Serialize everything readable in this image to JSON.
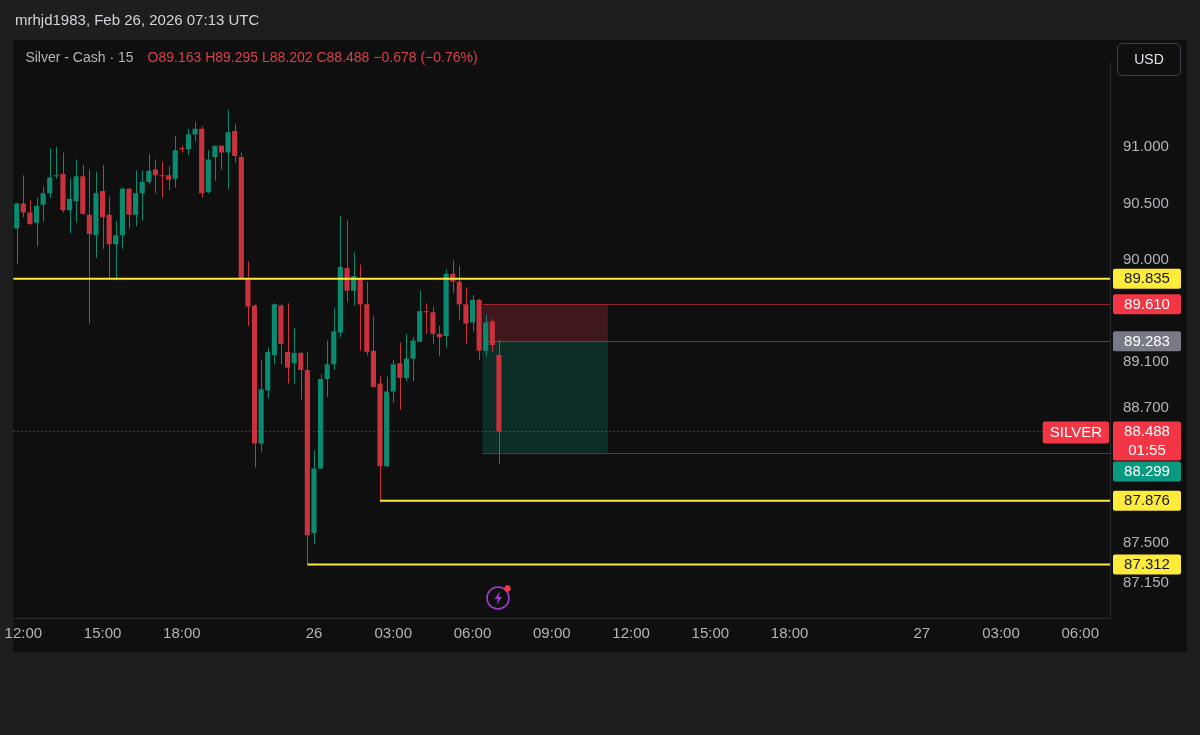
{
  "chart_data": {
    "type": "candlestick",
    "title": "Silver - Cash · 15",
    "subtitle": "O89.163 H89.295 L88.202 C88.488 −0.678 (−0.76%)",
    "categories": [
      null,
      "12:00",
      null,
      null,
      null,
      null,
      null,
      null,
      null,
      null,
      null,
      null,
      null,
      "15:00",
      null,
      null,
      null,
      null,
      null,
      null,
      null,
      null,
      null,
      null,
      null,
      "18:00",
      null,
      null,
      null,
      null,
      null,
      null,
      null,
      null,
      null,
      null,
      null,
      null,
      null,
      null,
      null,
      null,
      null,
      null,
      null,
      "26",
      null,
      null,
      null,
      null,
      null,
      null,
      null,
      null,
      null,
      null,
      null,
      "03:00",
      null,
      null,
      null,
      null,
      null,
      null,
      null,
      null,
      null,
      null,
      null,
      "06:00",
      null,
      null,
      null,
      null,
      null,
      null,
      null,
      null,
      null,
      null,
      null,
      "09:00",
      null,
      null,
      null,
      null,
      null,
      null,
      null,
      null,
      null,
      null,
      null,
      "12:00",
      null,
      null,
      null,
      null,
      null,
      null,
      null,
      null,
      null,
      null,
      null,
      "15:00",
      null,
      null,
      null,
      null,
      null,
      null,
      null,
      null,
      null,
      null,
      null,
      "18:00",
      null,
      null,
      null,
      null,
      null,
      null,
      null,
      null,
      null,
      null,
      null,
      null,
      null,
      null,
      null,
      null,
      null,
      null,
      null,
      "27",
      null,
      null,
      null,
      null,
      null,
      null,
      null,
      null,
      null,
      null,
      null,
      "03:00",
      null,
      null,
      null,
      null,
      null,
      null,
      null,
      null,
      null,
      null,
      null,
      "06:00",
      null,
      null,
      null,
      null
    ],
    "ohlc": [
      [
        90.28,
        90.51,
        89.97,
        90.5
      ],
      [
        90.5,
        90.75,
        90.38,
        90.42
      ],
      [
        90.42,
        90.53,
        90.31,
        90.32
      ],
      [
        90.33,
        90.55,
        90.12,
        90.48
      ],
      [
        90.49,
        90.65,
        90.34,
        90.59
      ],
      [
        90.59,
        90.99,
        90.55,
        90.73
      ],
      [
        90.74,
        91.0,
        90.72,
        90.75
      ],
      [
        90.76,
        90.95,
        90.42,
        90.44
      ],
      [
        90.44,
        90.72,
        90.24,
        90.54
      ],
      [
        90.52,
        90.89,
        90.33,
        90.74
      ],
      [
        90.74,
        90.84,
        90.4,
        90.41
      ],
      [
        90.4,
        90.8,
        89.44,
        90.23
      ],
      [
        90.22,
        90.78,
        90.02,
        90.59
      ],
      [
        90.61,
        90.84,
        90.1,
        90.38
      ],
      [
        90.4,
        90.56,
        89.84,
        90.14
      ],
      [
        90.14,
        90.35,
        89.83,
        90.22
      ],
      [
        90.22,
        90.64,
        90.1,
        90.63
      ],
      [
        90.63,
        90.64,
        90.28,
        90.4
      ],
      [
        90.4,
        90.79,
        90.3,
        90.59
      ],
      [
        90.59,
        90.79,
        90.35,
        90.69
      ],
      [
        90.69,
        90.94,
        90.67,
        90.79
      ],
      [
        90.8,
        90.89,
        90.59,
        90.75
      ],
      [
        90.75,
        90.87,
        90.55,
        90.74
      ],
      [
        90.75,
        90.83,
        90.62,
        90.71
      ],
      [
        90.72,
        91.1,
        90.64,
        90.97
      ],
      [
        90.99,
        91.01,
        90.95,
        90.98
      ],
      [
        90.98,
        91.16,
        90.93,
        91.11
      ],
      [
        91.11,
        91.22,
        91.05,
        91.16
      ],
      [
        91.16,
        91.18,
        90.55,
        90.59
      ],
      [
        90.6,
        90.97,
        90.59,
        90.89
      ],
      [
        90.91,
        91.01,
        90.7,
        91.01
      ],
      [
        91.01,
        91.01,
        90.8,
        90.95
      ],
      [
        90.95,
        91.33,
        90.63,
        91.13
      ],
      [
        91.14,
        91.2,
        90.86,
        90.92
      ],
      [
        90.91,
        90.95,
        89.83,
        89.84
      ],
      [
        89.84,
        89.99,
        89.42,
        89.59
      ],
      [
        89.6,
        89.61,
        88.17,
        88.38
      ],
      [
        88.38,
        89.12,
        88.31,
        88.86
      ],
      [
        88.85,
        89.23,
        88.78,
        89.19
      ],
      [
        89.16,
        89.62,
        89.08,
        89.61
      ],
      [
        89.6,
        89.61,
        89.08,
        89.26
      ],
      [
        89.19,
        89.62,
        88.91,
        89.05
      ],
      [
        89.09,
        89.4,
        88.91,
        89.18
      ],
      [
        89.18,
        89.19,
        88.77,
        89.03
      ],
      [
        89.03,
        89.19,
        87.312,
        87.57
      ],
      [
        87.59,
        88.32,
        87.49,
        88.16
      ],
      [
        88.16,
        88.99,
        88.16,
        88.95
      ],
      [
        88.95,
        89.29,
        88.79,
        89.08
      ],
      [
        89.08,
        89.58,
        89.03,
        89.37
      ],
      [
        89.36,
        90.39,
        89.32,
        89.94
      ],
      [
        89.93,
        90.35,
        89.63,
        89.73
      ],
      [
        89.73,
        90.07,
        89.6,
        89.86
      ],
      [
        89.84,
        89.96,
        89.2,
        89.61
      ],
      [
        89.61,
        89.81,
        89.16,
        89.19
      ],
      [
        89.2,
        89.5,
        88.88,
        88.88
      ],
      [
        88.91,
        88.98,
        87.876,
        88.18
      ],
      [
        88.18,
        88.97,
        88.17,
        88.84
      ],
      [
        88.84,
        89.12,
        88.74,
        89.08
      ],
      [
        89.09,
        89.27,
        88.68,
        88.96
      ],
      [
        88.96,
        89.35,
        88.93,
        89.13
      ],
      [
        89.13,
        89.32,
        88.93,
        89.29
      ],
      [
        89.28,
        89.73,
        89.28,
        89.55
      ],
      [
        89.55,
        89.62,
        89.35,
        89.54
      ],
      [
        89.54,
        89.59,
        89.26,
        89.35
      ],
      [
        89.35,
        89.42,
        89.15,
        89.32
      ],
      [
        89.33,
        89.92,
        89.23,
        89.88
      ],
      [
        89.88,
        90.0,
        89.71,
        89.81
      ],
      [
        89.81,
        89.95,
        89.47,
        89.61
      ],
      [
        89.61,
        89.76,
        89.26,
        89.44
      ],
      [
        89.45,
        89.69,
        89.37,
        89.65
      ],
      [
        89.65,
        89.66,
        89.12,
        89.2
      ],
      [
        89.2,
        89.52,
        89.15,
        89.45
      ],
      [
        89.46,
        89.48,
        89.19,
        89.25
      ],
      [
        89.163,
        89.295,
        88.202,
        88.488
      ],
      null,
      null,
      null,
      null,
      null,
      null,
      null,
      null,
      null,
      null,
      null,
      null,
      null,
      null,
      null,
      null,
      null,
      null,
      null,
      null,
      null,
      null,
      null,
      null,
      null,
      null,
      null,
      null,
      null,
      null,
      null,
      null,
      null,
      null,
      null,
      null,
      null,
      null,
      null,
      null,
      null,
      null,
      null,
      null,
      null,
      null,
      null,
      null,
      null,
      null,
      null,
      null,
      null,
      null,
      null,
      null,
      null,
      null,
      null,
      null,
      null,
      null,
      null,
      null,
      null,
      null,
      null,
      null,
      null,
      null,
      null,
      null,
      null,
      null,
      null,
      null,
      null,
      null,
      null,
      null,
      null,
      null,
      null,
      null,
      null,
      null,
      null,
      null,
      null,
      null,
      null,
      null
    ],
    "ylim": [
      86.84,
      91.75
    ],
    "yticks": [
      {
        "value": 87.15,
        "label": "87.150"
      },
      {
        "value": 87.5,
        "label": "87.500"
      },
      {
        "value": 88.7,
        "label": "88.700"
      },
      {
        "value": 89.1,
        "label": "89.100"
      },
      {
        "value": 90,
        "label": "90.000"
      },
      {
        "value": 90.5,
        "label": "90.500"
      },
      {
        "value": 91,
        "label": "91.000"
      }
    ],
    "ref_lines": [
      {
        "axis": "y",
        "value": 89.835,
        "label": "89.835",
        "color": "#ffeb3b"
      },
      {
        "axis": "y",
        "value": 87.876,
        "label": "87.876",
        "color": "#ffeb3b"
      },
      {
        "axis": "y",
        "value": 87.312,
        "label": "87.312",
        "color": "#ffeb3b"
      },
      {
        "axis": "y",
        "value": 88.488,
        "label": "88.488",
        "color": "#f23645",
        "line_style": "dotted"
      },
      {
        "axis": "y",
        "value": 89.61,
        "label": "89.610",
        "color": "#f23645"
      },
      {
        "axis": "y",
        "value": 89.283,
        "label": "89.283",
        "color": "#787b86"
      },
      {
        "axis": "y",
        "value": 88.299,
        "label": "88.299",
        "color": "#089981"
      }
    ],
    "bands": [
      {
        "axis": "y",
        "from": 89.283,
        "to": 89.61,
        "color": "#f23645"
      },
      {
        "axis": "y",
        "from": 88.299,
        "to": 89.283,
        "color": "#089981"
      }
    ],
    "annotations": [
      "mrhjd1983, Feb 26, 2026 07:13 UTC",
      "USD",
      "01:55",
      {
        "text": "SILVER",
        "y": 88.488
      }
    ]
  }
}
